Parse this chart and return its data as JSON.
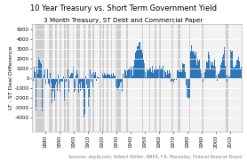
{
  "title": "10 Year Treasury vs. Short Term Government Yield",
  "subtitle": "3 Month Treasury, ST Debt and Commercial Paper",
  "ylabel": "LT - ST Deal Difference",
  "source": "Sources: daydj.com, Robert Shiller, NBER, F.R. Macaulay, Federal Reserve Board",
  "year_start": 1871,
  "year_end": 2018,
  "ylim_min": -5500,
  "ylim_max": 5500,
  "bar_color": "#2E75B6",
  "bg_color": "#FFFFFF",
  "plot_bg_color": "#F2F2F2",
  "grid_color": "#FFFFFF",
  "recession_color": "#C8C8C8",
  "recession_alpha": 0.85,
  "recession_bands": [
    [
      1873,
      1879
    ],
    [
      1882,
      1885
    ],
    [
      1887,
      1888
    ],
    [
      1890,
      1891
    ],
    [
      1893,
      1894
    ],
    [
      1895,
      1897
    ],
    [
      1899,
      1900
    ],
    [
      1902,
      1904
    ],
    [
      1907,
      1908
    ],
    [
      1910,
      1912
    ],
    [
      1913,
      1914
    ],
    [
      1918,
      1919
    ],
    [
      1920,
      1921
    ],
    [
      1923,
      1924
    ],
    [
      1926,
      1927
    ],
    [
      1929,
      1933
    ],
    [
      1937,
      1938
    ],
    [
      1945,
      1945
    ],
    [
      1948,
      1949
    ],
    [
      1953,
      1954
    ],
    [
      1957,
      1958
    ],
    [
      1960,
      1961
    ],
    [
      1969,
      1970
    ],
    [
      1973,
      1975
    ],
    [
      1980,
      1980
    ],
    [
      1981,
      1982
    ],
    [
      1990,
      1991
    ],
    [
      2001,
      2001
    ],
    [
      2007,
      2009
    ]
  ],
  "yticks": [
    -4000,
    -3000,
    -2000,
    -1000,
    0,
    1000,
    2000,
    3000,
    4000,
    5000
  ],
  "xticks": [
    1880,
    1890,
    1900,
    1910,
    1920,
    1930,
    1940,
    1950,
    1960,
    1970,
    1980,
    1990,
    2000,
    2010
  ],
  "title_fontsize": 6.0,
  "subtitle_fontsize": 5.2,
  "ylabel_fontsize": 4.5,
  "tick_fontsize": 4.0,
  "source_fontsize": 3.5
}
